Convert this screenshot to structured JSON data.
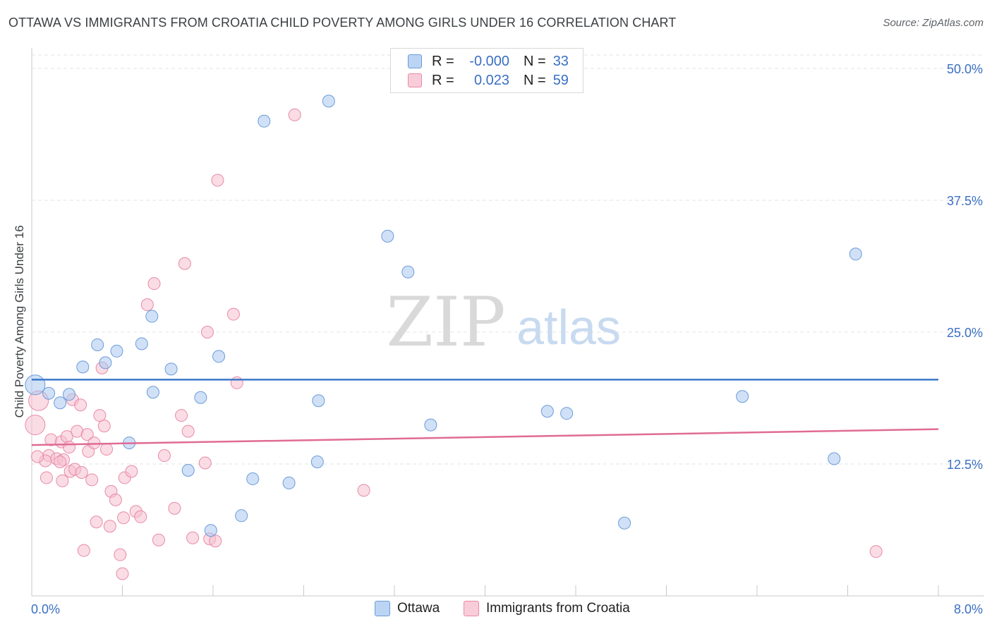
{
  "header": {
    "title": "OTTAWA VS IMMIGRANTS FROM CROATIA CHILD POVERTY AMONG GIRLS UNDER 16 CORRELATION CHART",
    "source": "Source: ZipAtlas.com"
  },
  "legend": {
    "rows": [
      {
        "r_label": "R =",
        "r_value": "-0.000",
        "n_label": "N =",
        "n_value": "33"
      },
      {
        "r_label": "R =",
        "r_value": "0.023",
        "n_label": "N =",
        "n_value": "59"
      }
    ]
  },
  "bottom_legend": {
    "ottawa": "Ottawa",
    "croatia": "Immigrants from Croatia"
  },
  "watermark": {
    "zip": "ZIP",
    "atlas": "atlas"
  },
  "colors": {
    "ottawa_fill": "#a9c8f0",
    "ottawa_stroke": "#6b9bd8",
    "ottawa_line": "#3a78c9",
    "croatia_fill": "#f6bfd0",
    "croatia_stroke": "#e88aa8",
    "croatia_line": "#e06b95",
    "tick_label": "#3a6fc4"
  },
  "chart_data": {
    "type": "scatter",
    "title": "OTTAWA VS IMMIGRANTS FROM CROATIA CHILD POVERTY AMONG GIRLS UNDER 16 CORRELATION CHART",
    "xlabel": "",
    "ylabel": "Child Poverty Among Girls Under 16",
    "xlim": [
      0,
      8
    ],
    "ylim": [
      0,
      50
    ],
    "x_tick_labels": [
      "0.0%",
      "8.0%"
    ],
    "y_ticks": [
      12.5,
      25.0,
      37.5,
      50.0
    ],
    "y_tick_labels": [
      "12.5%",
      "25.0%",
      "37.5%",
      "50.0%"
    ],
    "series": [
      {
        "name": "Ottawa",
        "trend": [
          [
            0,
            20.5
          ],
          [
            8,
            20.5
          ]
        ],
        "points": [
          [
            0.03,
            20.0
          ],
          [
            0.15,
            19.2
          ],
          [
            0.33,
            19.1
          ],
          [
            0.25,
            18.3
          ],
          [
            0.45,
            21.7
          ],
          [
            0.58,
            23.8
          ],
          [
            0.65,
            22.1
          ],
          [
            0.75,
            23.2
          ],
          [
            0.86,
            14.5
          ],
          [
            0.97,
            23.9
          ],
          [
            1.06,
            26.5
          ],
          [
            1.07,
            19.3
          ],
          [
            1.23,
            21.5
          ],
          [
            1.38,
            11.9
          ],
          [
            1.49,
            18.8
          ],
          [
            1.65,
            22.7
          ],
          [
            1.58,
            6.2
          ],
          [
            1.85,
            7.6
          ],
          [
            1.95,
            11.1
          ],
          [
            2.05,
            45.0
          ],
          [
            2.27,
            10.7
          ],
          [
            2.52,
            12.7
          ],
          [
            2.53,
            18.5
          ],
          [
            2.62,
            46.9
          ],
          [
            3.14,
            34.1
          ],
          [
            3.32,
            30.7
          ],
          [
            3.52,
            16.2
          ],
          [
            4.55,
            17.5
          ],
          [
            4.72,
            17.3
          ],
          [
            5.23,
            6.9
          ],
          [
            6.27,
            18.9
          ],
          [
            7.08,
            13.0
          ],
          [
            7.27,
            32.4
          ]
        ]
      },
      {
        "name": "Immigrants from Croatia",
        "trend": [
          [
            0,
            14.3
          ],
          [
            8,
            15.8
          ]
        ],
        "points": [
          [
            0.03,
            16.2
          ],
          [
            0.06,
            18.5
          ],
          [
            0.13,
            11.2
          ],
          [
            0.15,
            13.3
          ],
          [
            0.17,
            14.8
          ],
          [
            0.22,
            13.0
          ],
          [
            0.26,
            14.6
          ],
          [
            0.27,
            10.9
          ],
          [
            0.28,
            12.9
          ],
          [
            0.31,
            15.1
          ],
          [
            0.33,
            14.1
          ],
          [
            0.34,
            11.8
          ],
          [
            0.36,
            18.6
          ],
          [
            0.38,
            12.0
          ],
          [
            0.4,
            15.6
          ],
          [
            0.43,
            18.1
          ],
          [
            0.44,
            11.7
          ],
          [
            0.46,
            4.3
          ],
          [
            0.49,
            15.3
          ],
          [
            0.5,
            13.7
          ],
          [
            0.53,
            11.0
          ],
          [
            0.55,
            14.5
          ],
          [
            0.57,
            7.0
          ],
          [
            0.6,
            17.1
          ],
          [
            0.62,
            21.6
          ],
          [
            0.64,
            16.1
          ],
          [
            0.66,
            13.9
          ],
          [
            0.69,
            6.6
          ],
          [
            0.7,
            9.9
          ],
          [
            0.74,
            9.1
          ],
          [
            0.78,
            3.9
          ],
          [
            0.8,
            2.1
          ],
          [
            0.81,
            7.4
          ],
          [
            0.82,
            11.2
          ],
          [
            0.88,
            11.8
          ],
          [
            0.92,
            8.0
          ],
          [
            0.96,
            7.5
          ],
          [
            1.02,
            27.6
          ],
          [
            1.08,
            29.6
          ],
          [
            1.12,
            5.3
          ],
          [
            1.17,
            13.3
          ],
          [
            1.26,
            8.3
          ],
          [
            1.32,
            17.1
          ],
          [
            1.35,
            31.5
          ],
          [
            1.38,
            15.6
          ],
          [
            1.42,
            5.5
          ],
          [
            1.53,
            12.6
          ],
          [
            1.55,
            25.0
          ],
          [
            1.57,
            5.4
          ],
          [
            1.62,
            5.2
          ],
          [
            1.64,
            39.4
          ],
          [
            1.78,
            26.7
          ],
          [
            1.81,
            20.2
          ],
          [
            2.32,
            45.6
          ],
          [
            2.93,
            10.0
          ],
          [
            7.45,
            4.2
          ],
          [
            0.12,
            12.8
          ],
          [
            0.25,
            12.7
          ],
          [
            0.05,
            13.2
          ]
        ]
      }
    ]
  }
}
